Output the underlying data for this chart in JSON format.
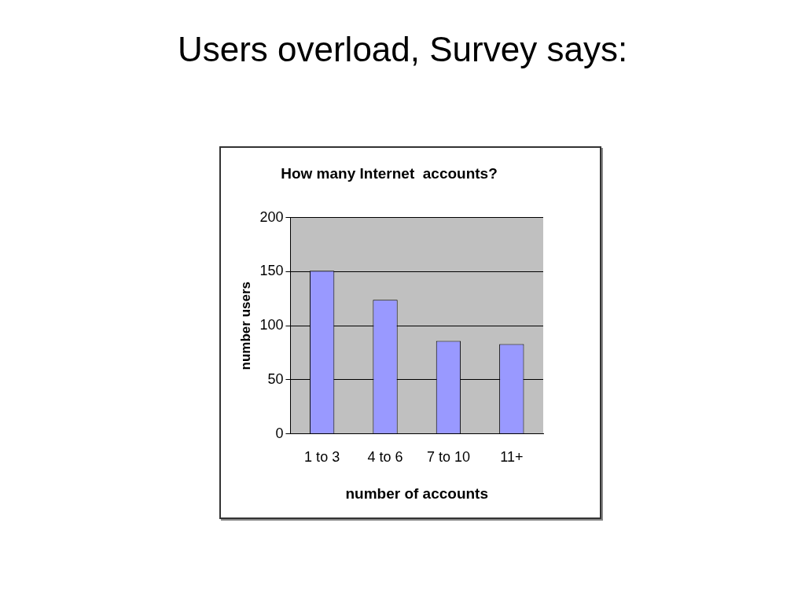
{
  "chart_data": {
    "type": "bar",
    "title": "Users overload, Survey says:",
    "subtitle": "How many Internet  accounts?",
    "categories": [
      "1 to 3",
      "4 to 6",
      "7 to 10",
      "11+"
    ],
    "values": [
      151,
      124,
      86,
      83
    ],
    "color": "#9999ff",
    "xlabel": "number of accounts",
    "ylabel": "number users",
    "ylim": [
      0,
      200
    ],
    "yticks": [
      0,
      50,
      100,
      150,
      200
    ],
    "grid": "y",
    "legend": false
  }
}
